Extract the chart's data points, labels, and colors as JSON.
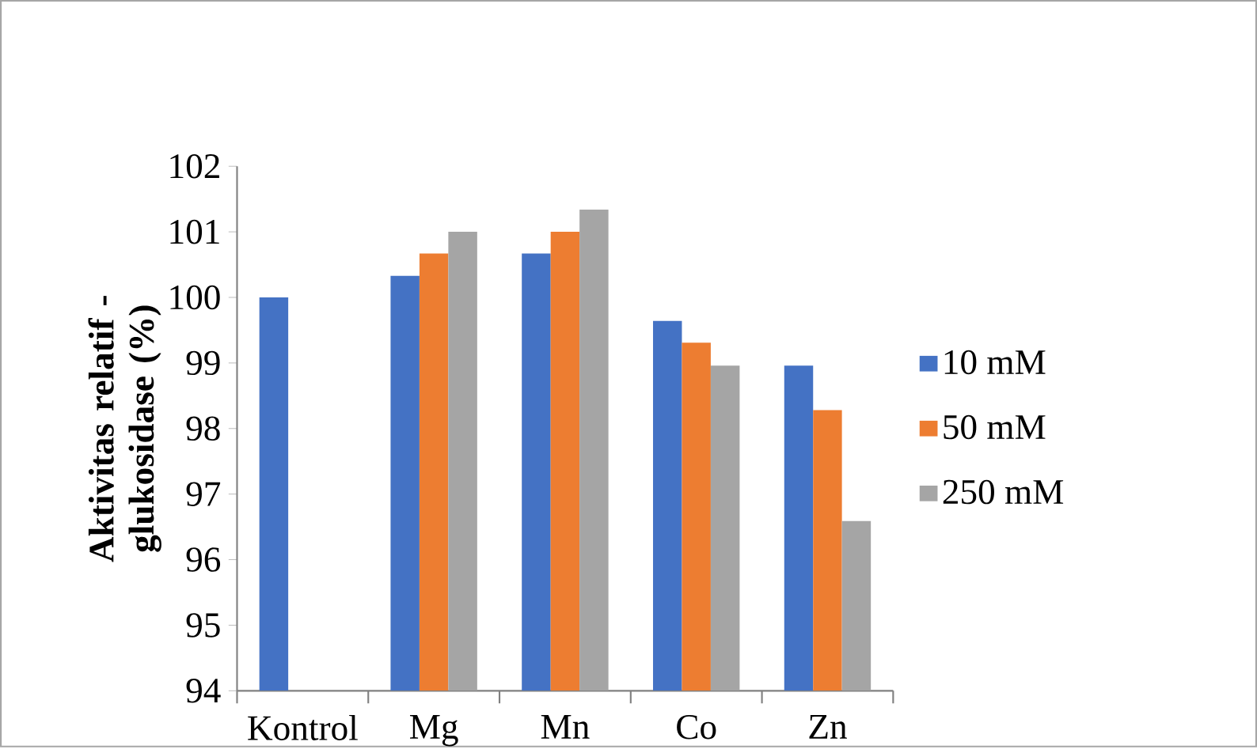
{
  "chart_data": {
    "type": "bar",
    "ylabel": "Aktivitas relatif -glukosidase (%)",
    "categories": [
      "Kontrol",
      "Mg",
      "Mn",
      "Co",
      "Zn"
    ],
    "series": [
      {
        "name": "10 mM",
        "color": "#4472c4",
        "values": [
          100,
          100.33,
          100.67,
          99.64,
          98.96
        ]
      },
      {
        "name": "50 mM",
        "color": "#ed7d31",
        "values": [
          null,
          100.67,
          101.0,
          99.31,
          98.28
        ]
      },
      {
        "name": "250 mM",
        "color": "#a5a5a5",
        "values": [
          null,
          101.0,
          101.34,
          98.96,
          96.59
        ]
      }
    ],
    "ylim": [
      94,
      102
    ],
    "yticks": [
      94,
      95,
      96,
      97,
      98,
      99,
      100,
      101,
      102
    ],
    "grid": false,
    "legend": "right"
  }
}
